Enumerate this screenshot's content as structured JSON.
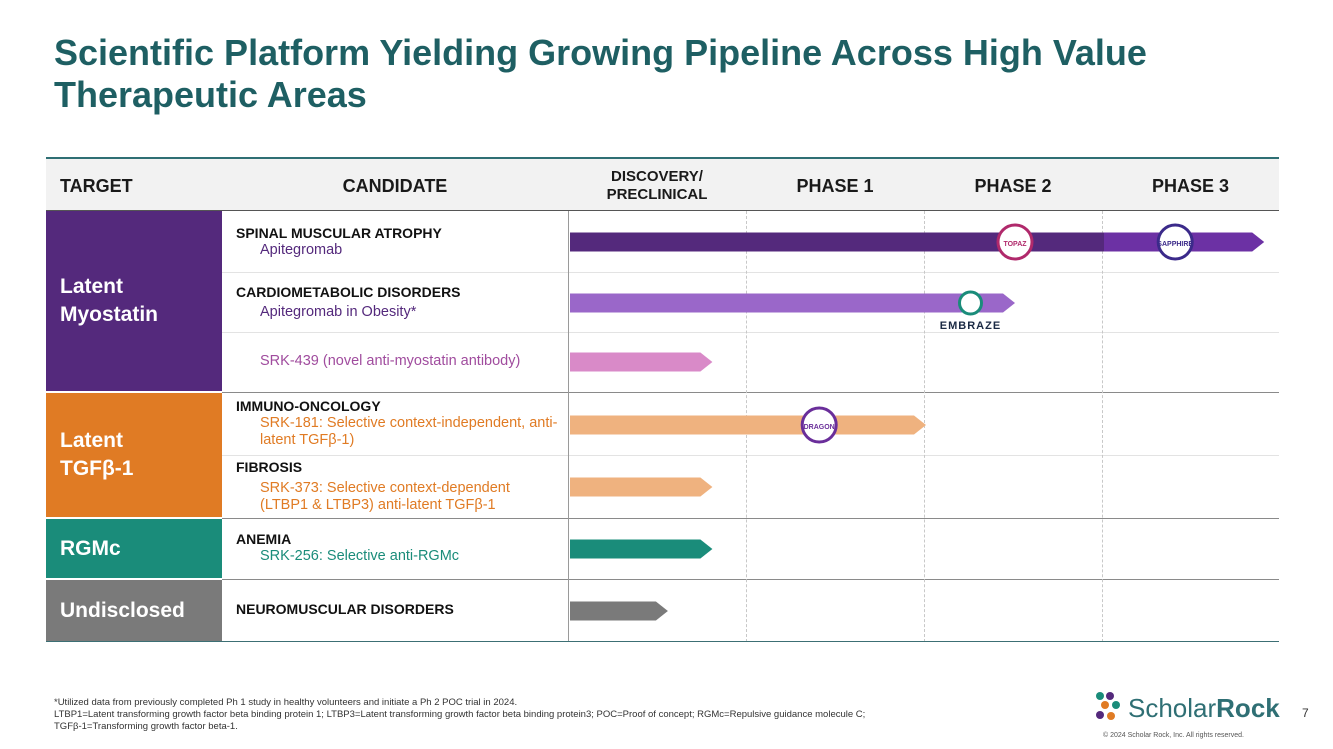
{
  "title": "Scientific Platform Yielding Growing Pipeline Across High Value Therapeutic Areas",
  "header": {
    "target": "TARGET",
    "candidate": "CANDIDATE",
    "discovery": "DISCOVERY/ PRECLINICAL",
    "phase1": "PHASE 1",
    "phase2": "PHASE 2",
    "phase3": "PHASE 3"
  },
  "targets": [
    {
      "label": "Latent Myostatin",
      "color": "#54297c"
    },
    {
      "label": "Latent TGFβ-1",
      "color": "#e07b24"
    },
    {
      "label": "RGMc",
      "color": "#1a8c7a"
    },
    {
      "label": "Undisclosed",
      "color": "#7a7a7a"
    }
  ],
  "rows": [
    {
      "category": "SPINAL MUSCULAR ATROPHY",
      "candidate": "Apitegromab",
      "color": "#54297c"
    },
    {
      "category": "CARDIOMETABOLIC DISORDERS",
      "candidate": "Apitegromab in Obesity*",
      "color": "#54297c"
    },
    {
      "category": "",
      "candidate": "SRK-439 (novel anti-myostatin antibody)",
      "color": "#a04c9e"
    },
    {
      "category": "IMMUNO-ONCOLOGY",
      "candidate": "SRK-181:  Selective context-independent, anti-latent TGFβ-1)",
      "color": "#e07b24"
    },
    {
      "category": "FIBROSIS",
      "candidate": "SRK-373: Selective context-dependent (LTBP1 & LTBP3) anti-latent TGFβ-1",
      "color": "#e07b24"
    },
    {
      "category": "ANEMIA",
      "candidate": "SRK-256: Selective anti-RGMc",
      "color": "#1a8c7a"
    },
    {
      "category": "NEUROMUSCULAR DISORDERS",
      "candidate": "",
      "color": "#1a1a1a"
    }
  ],
  "chart_data": {
    "type": "bar",
    "orientation": "horizontal",
    "title": "Scientific Platform Yielding Growing Pipeline Across High Value Therapeutic Areas",
    "stages": [
      "DISCOVERY/ PRECLINICAL",
      "PHASE 1",
      "PHASE 2",
      "PHASE 3"
    ],
    "xlim": [
      0,
      4
    ],
    "categories": [
      "Apitegromab",
      "Apitegromab in Obesity*",
      "SRK-439 (novel anti-myostatin antibody)",
      "SRK-181",
      "SRK-373",
      "SRK-256",
      "NEUROMUSCULAR DISORDERS"
    ],
    "values": [
      3.9,
      2.5,
      0.8,
      2.0,
      0.8,
      0.8,
      0.55
    ],
    "colors": [
      "#54297c",
      "#9a67c9",
      "#d98ac8",
      "#efb27f",
      "#efb27f",
      "#1a8c7a",
      "#7a7a7a"
    ],
    "phase_split": [
      {
        "row": 0,
        "from": 3.0,
        "color": "#6c31a4"
      }
    ],
    "trial_labels": [
      {
        "row": 0,
        "label": "TOPAZ",
        "stage_pos": 2.5
      },
      {
        "row": 0,
        "label": "SAPPHIRE",
        "stage_pos": 3.4
      },
      {
        "row": 1,
        "label": "EMBRAZE",
        "stage_pos": 2.25
      },
      {
        "row": 3,
        "label": "DRAGON",
        "stage_pos": 1.4
      }
    ]
  },
  "footnotes": [
    "*Utilized data from previously completed Ph 1 study in healthy volunteers and initiate a Ph 2 POC trial in 2024.",
    "LTBP1=Latent transforming growth factor beta binding protein 1; LTBP3=Latent transforming growth factor beta binding protein3; POC=Proof of concept; RGMc=Repulsive guidance molecule C;",
    "TGFβ-1=Transforming growth factor beta-1."
  ],
  "brand": {
    "name_light": "Scholar",
    "name_bold": "Rock",
    "copyright": "© 2024 Scholar Rock, Inc. All rights reserved."
  },
  "page_number": "7"
}
